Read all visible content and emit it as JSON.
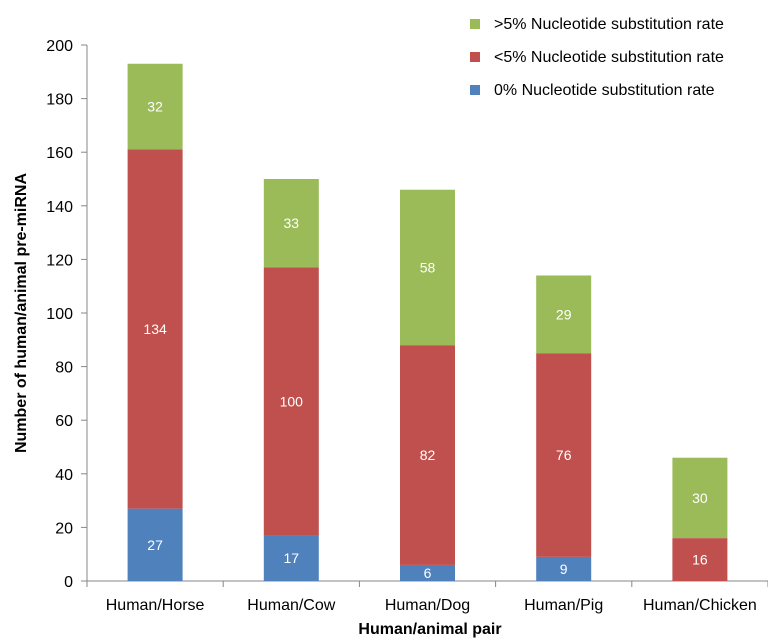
{
  "chart_data": {
    "type": "bar",
    "stacked": true,
    "categories": [
      "Human/Horse",
      "Human/Cow",
      "Human/Dog",
      "Human/Pig",
      "Human/Chicken"
    ],
    "series": [
      {
        "name": "0% Nucleotide substitution rate",
        "color": "#4f81bd",
        "values": [
          27,
          17,
          6,
          9,
          0
        ],
        "labels": [
          "27",
          "17",
          "6",
          "9",
          ""
        ]
      },
      {
        "name": "<5% Nucleotide substitution rate",
        "color": "#c0504d",
        "values": [
          134,
          100,
          82,
          76,
          16
        ],
        "labels": [
          "134",
          "100",
          "82",
          "76",
          "16"
        ]
      },
      {
        "name": ">5% Nucleotide substitution rate",
        "color": "#9bbb59",
        "values": [
          32,
          33,
          58,
          29,
          30
        ],
        "labels": [
          "32",
          "33",
          "58",
          "29",
          "30"
        ]
      }
    ],
    "legend_order": [
      2,
      1,
      0
    ],
    "legend_position": "top-right",
    "xlabel": "Human/animal pair",
    "ylabel": "Number of human/animal pre-miRNA",
    "ylim": [
      0,
      200
    ],
    "yticks": [
      0,
      20,
      40,
      60,
      80,
      100,
      120,
      140,
      160,
      180,
      200
    ],
    "grid": false
  }
}
